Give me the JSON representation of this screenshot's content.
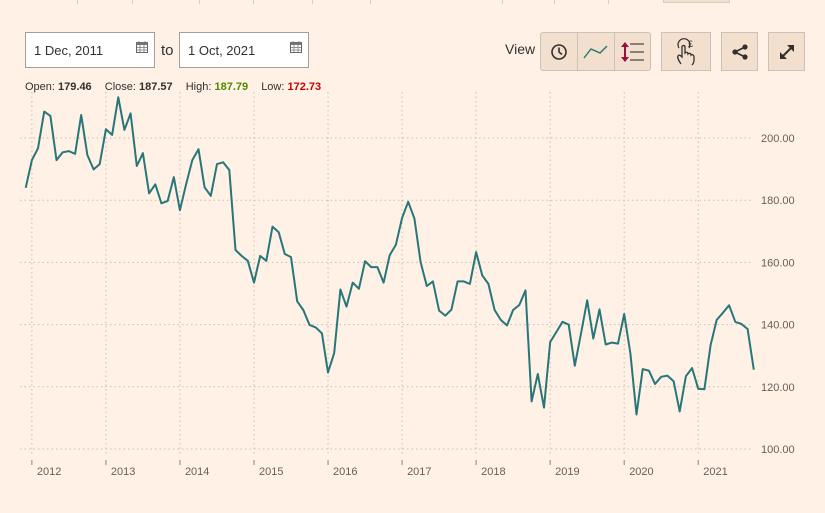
{
  "header": {
    "from_date": "1 Dec, 2011",
    "to_label": "to",
    "to_date": "1 Oct, 2021",
    "view_label": "View"
  },
  "toolbar": {
    "icons": [
      "clock-icon",
      "line-chart-icon",
      "vertical-scale-icon",
      "pound-touch-icon",
      "share-icon",
      "expand-icon"
    ]
  },
  "ohlc": {
    "open_label": "Open:",
    "open": "179.46",
    "close_label": "Close:",
    "close": "187.57",
    "high_label": "High:",
    "high": "187.79",
    "low_label": "Low:",
    "low": "172.73",
    "high_color": "#4e8a00",
    "low_color": "#cc0000"
  },
  "colors": {
    "background": "#fff1e5",
    "line": "#26767a",
    "button": "#f2dfce"
  },
  "chart_data": {
    "type": "line",
    "start": "2011-12",
    "frequency": "monthly",
    "end": "2021-10",
    "ylim": [
      100,
      215
    ],
    "yticks": [
      "100.00",
      "120.00",
      "140.00",
      "160.00",
      "180.00",
      "200.00"
    ],
    "xticks": [
      "2012",
      "2013",
      "2014",
      "2015",
      "2016",
      "2017",
      "2018",
      "2019",
      "2020",
      "2021"
    ],
    "grid": true,
    "values": [
      184.0,
      192.9,
      196.7,
      208.5,
      207.1,
      192.9,
      195.4,
      195.8,
      194.9,
      207.4,
      194.5,
      189.9,
      191.6,
      202.8,
      201.0,
      213.1,
      202.6,
      207.9,
      191.0,
      195.1,
      182.2,
      185.1,
      179.0,
      179.7,
      187.4,
      176.8,
      185.1,
      192.9,
      196.4,
      184.1,
      181.4,
      191.6,
      192.2,
      189.7,
      164.0,
      162.1,
      160.5,
      153.5,
      162.1,
      160.5,
      171.5,
      169.7,
      162.7,
      161.7,
      147.5,
      144.7,
      139.9,
      139.1,
      137.2,
      124.6,
      130.9,
      151.3,
      145.8,
      153.5,
      151.5,
      160.4,
      158.5,
      158.5,
      153.5,
      162.3,
      165.7,
      174.3,
      179.5,
      174.1,
      160.1,
      152.4,
      153.9,
      144.5,
      142.9,
      144.8,
      153.9,
      153.9,
      153.1,
      163.3,
      155.8,
      153.1,
      144.7,
      141.5,
      139.7,
      144.7,
      146.3,
      151.0,
      115.3,
      124.1,
      113.3,
      134.4,
      137.6,
      140.9,
      140.0,
      126.8,
      137.1,
      147.8,
      135.5,
      144.9,
      133.6,
      134.2,
      133.9,
      143.4,
      130.7,
      111.1,
      125.7,
      125.2,
      120.9,
      123.2,
      123.6,
      121.8,
      112.1,
      123.4,
      126.0,
      119.4,
      119.2,
      133.4,
      141.5,
      143.8,
      146.2,
      140.9,
      140.2,
      138.6,
      125.5
    ]
  }
}
